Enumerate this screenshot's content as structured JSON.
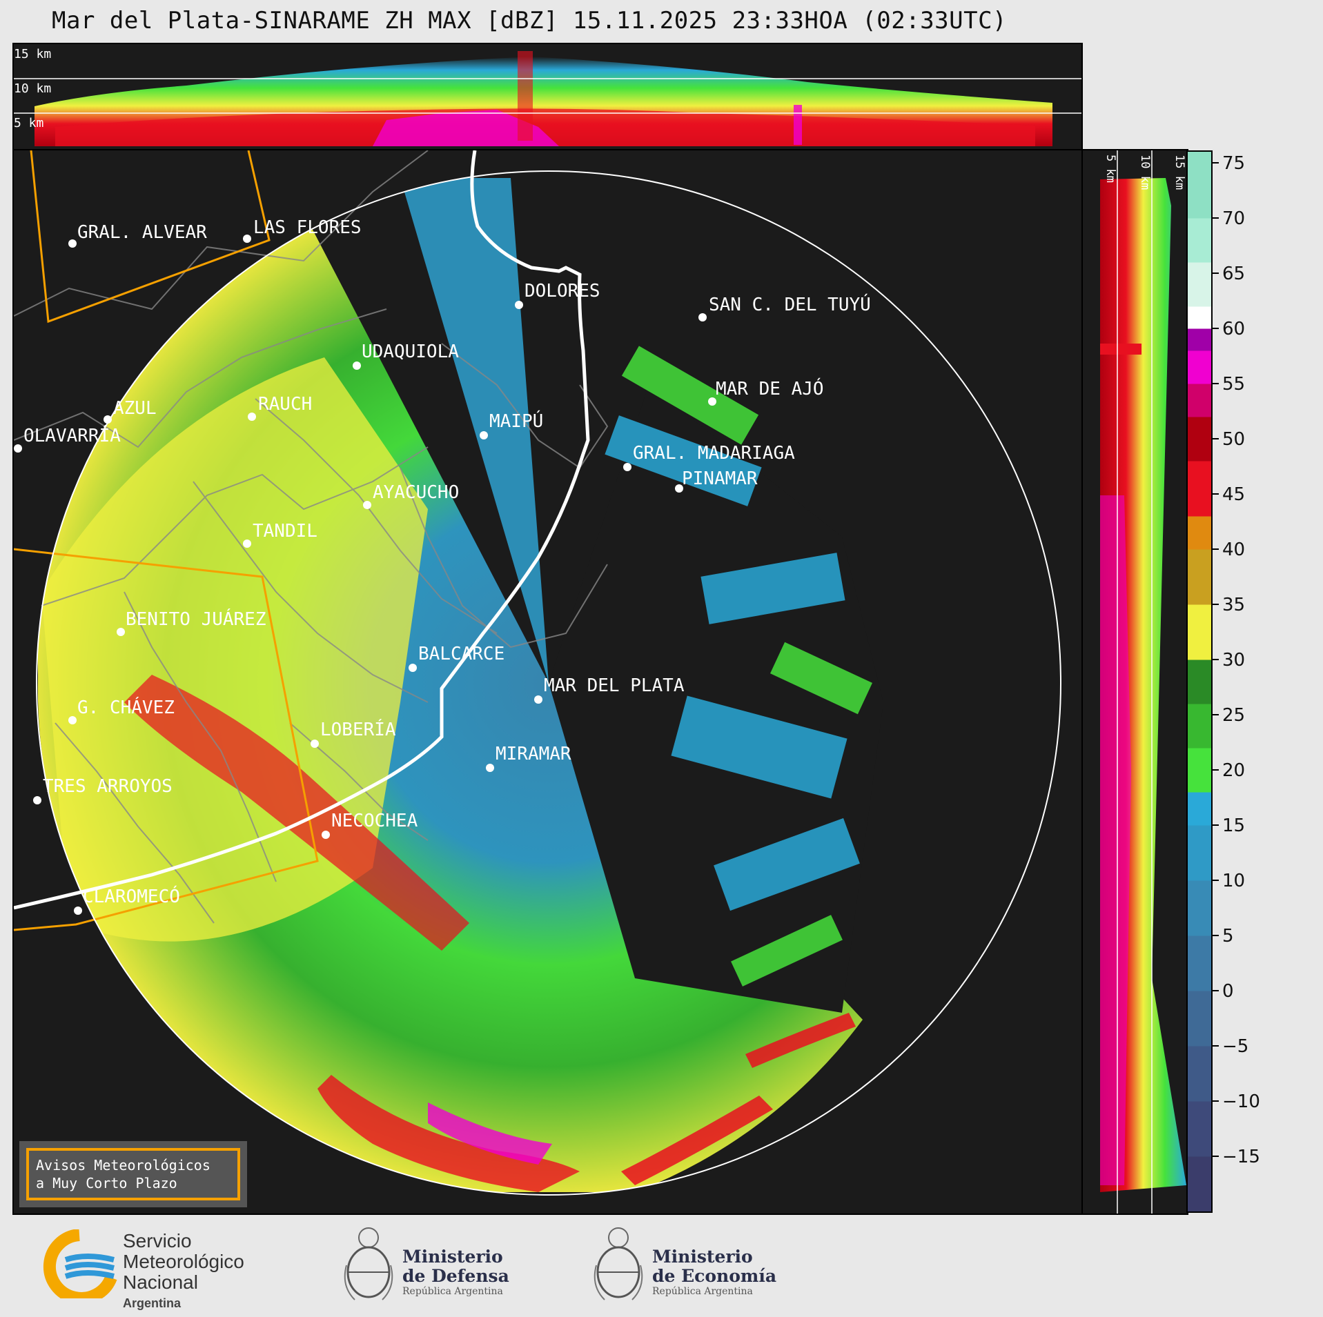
{
  "title": "Mar del Plata-SINARAME ZH MAX [dBZ] 15.11.2025 23:33HOA (02:33UTC)",
  "top_panel": {
    "height_labels": [
      {
        "text": "15 km",
        "km": 15
      },
      {
        "text": "10 km",
        "km": 10
      },
      {
        "text": "5 km",
        "km": 5
      }
    ]
  },
  "side_panel": {
    "height_labels": [
      {
        "text": "5 km",
        "km": 5
      },
      {
        "text": "10 km",
        "km": 10
      },
      {
        "text": "15 km",
        "km": 15
      }
    ]
  },
  "colorbar": {
    "unit": "dBZ",
    "ticks": [
      "75",
      "70",
      "65",
      "60",
      "55",
      "50",
      "45",
      "40",
      "35",
      "30",
      "25",
      "20",
      "15",
      "10",
      "5",
      "0",
      "−5",
      "−10",
      "−15"
    ],
    "tick_values": [
      75,
      70,
      65,
      60,
      55,
      50,
      45,
      40,
      35,
      30,
      25,
      20,
      15,
      10,
      5,
      0,
      -5,
      -10,
      -15
    ],
    "range": [
      -20,
      76
    ],
    "bands": [
      {
        "from": -20,
        "to": -15,
        "color": "#3b3d6b"
      },
      {
        "from": -15,
        "to": -10,
        "color": "#3e4a7a"
      },
      {
        "from": -10,
        "to": -5,
        "color": "#3f5a88"
      },
      {
        "from": -5,
        "to": 0,
        "color": "#3f6a96"
      },
      {
        "from": 0,
        "to": 5,
        "color": "#3d7aa6"
      },
      {
        "from": 5,
        "to": 10,
        "color": "#388bb6"
      },
      {
        "from": 10,
        "to": 15,
        "color": "#2f9ac6"
      },
      {
        "from": 15,
        "to": 18,
        "color": "#2aa9d8"
      },
      {
        "from": 18,
        "to": 22,
        "color": "#46e23c"
      },
      {
        "from": 22,
        "to": 26,
        "color": "#38b830"
      },
      {
        "from": 26,
        "to": 30,
        "color": "#2a8a26"
      },
      {
        "from": 30,
        "to": 35,
        "color": "#f0f040"
      },
      {
        "from": 35,
        "to": 40,
        "color": "#c9a020"
      },
      {
        "from": 40,
        "to": 43,
        "color": "#e08a10"
      },
      {
        "from": 43,
        "to": 48,
        "color": "#e81020"
      },
      {
        "from": 48,
        "to": 52,
        "color": "#b00010"
      },
      {
        "from": 52,
        "to": 55,
        "color": "#d0006a"
      },
      {
        "from": 55,
        "to": 58,
        "color": "#f000d0"
      },
      {
        "from": 58,
        "to": 60,
        "color": "#a000a8"
      },
      {
        "from": 60,
        "to": 62,
        "color": "#ffffff"
      },
      {
        "from": 62,
        "to": 66,
        "color": "#d8f4e8"
      },
      {
        "from": 66,
        "to": 70,
        "color": "#a8ecd4"
      },
      {
        "from": 70,
        "to": 76,
        "color": "#8ee0c4"
      }
    ]
  },
  "map": {
    "cities": [
      {
        "id": "gral-alvear",
        "name": "GRAL. ALVEAR"
      },
      {
        "id": "las-flores",
        "name": "LAS FLORES"
      },
      {
        "id": "dolores",
        "name": "DOLORES"
      },
      {
        "id": "san-c-del-tuyu",
        "name": "SAN C. DEL TUYÚ"
      },
      {
        "id": "udaquiola",
        "name": "UDAQUIOLA"
      },
      {
        "id": "mar-de-ajo",
        "name": "MAR DE AJÓ"
      },
      {
        "id": "azul",
        "name": "AZUL"
      },
      {
        "id": "rauch",
        "name": "RAUCH"
      },
      {
        "id": "olavarria",
        "name": "OLAVARRÍA"
      },
      {
        "id": "maipu",
        "name": "MAIPÚ"
      },
      {
        "id": "gral-madariaga",
        "name": "GRAL. MADARIAGA"
      },
      {
        "id": "pinamar",
        "name": "PINAMAR"
      },
      {
        "id": "ayacucho",
        "name": "AYACUCHO"
      },
      {
        "id": "tandil",
        "name": "TANDIL"
      },
      {
        "id": "benito-juarez",
        "name": "BENITO JUÁREZ"
      },
      {
        "id": "balcarce",
        "name": "BALCARCE"
      },
      {
        "id": "mar-del-plata",
        "name": "MAR DEL PLATA"
      },
      {
        "id": "g-chavez",
        "name": "G. CHÁVEZ"
      },
      {
        "id": "loberia",
        "name": "LOBERÍA"
      },
      {
        "id": "miramar",
        "name": "MIRAMAR"
      },
      {
        "id": "tres-arroyos",
        "name": "TRES ARROYOS"
      },
      {
        "id": "necochea",
        "name": "NECOCHEA"
      },
      {
        "id": "claromeco",
        "name": "CLAROMECÓ"
      }
    ]
  },
  "notice": {
    "line1": "Avisos Meteorológicos",
    "line2": "a Muy Corto Plazo"
  },
  "footer": {
    "smn": {
      "line1": "Servicio",
      "line2": "Meteorológico",
      "line3": "Nacional",
      "line4": "Argentina"
    },
    "defensa": {
      "line1": "Ministerio",
      "line2": "de Defensa",
      "line3": "República Argentina"
    },
    "economia": {
      "line1": "Ministerio",
      "line2": "de Economía",
      "line3": "República Argentina"
    }
  }
}
